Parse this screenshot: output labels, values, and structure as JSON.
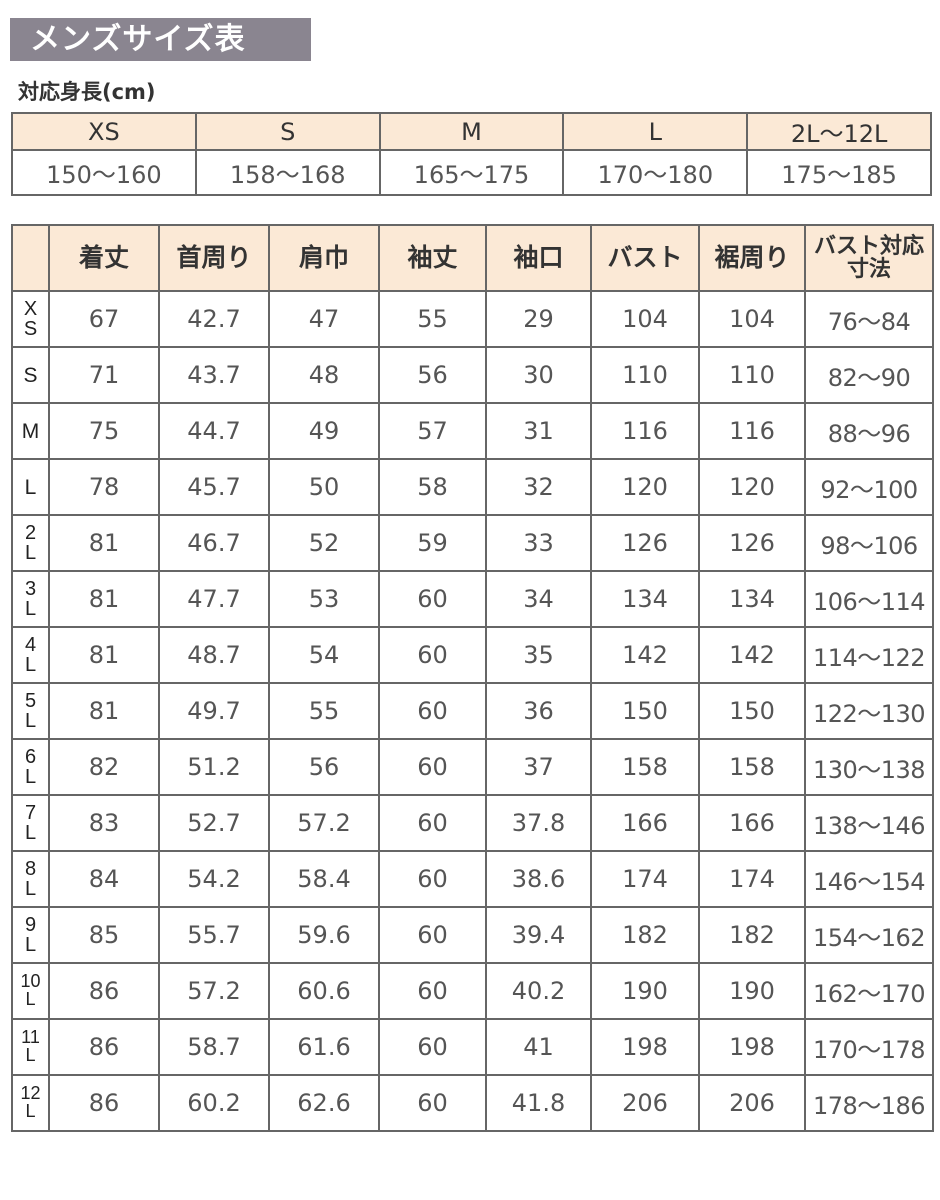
{
  "title": "メンズサイズ表",
  "height_label": "対応身長(cm)",
  "height_table": {
    "sizes": [
      "XS",
      "S",
      "M",
      "L",
      "2L〜12L"
    ],
    "heights": [
      "150〜160",
      "158〜168",
      "165〜175",
      "170〜180",
      "175〜185"
    ]
  },
  "size_table": {
    "headers": [
      "着丈",
      "首周り",
      "肩巾",
      "袖丈",
      "袖口",
      "バスト",
      "裾周り",
      "バスト対応寸法"
    ],
    "rows": [
      {
        "size": "XS",
        "values": [
          "67",
          "42.7",
          "47",
          "55",
          "29",
          "104",
          "104",
          "76〜84"
        ]
      },
      {
        "size": "S",
        "values": [
          "71",
          "43.7",
          "48",
          "56",
          "30",
          "110",
          "110",
          "82〜90"
        ]
      },
      {
        "size": "M",
        "values": [
          "75",
          "44.7",
          "49",
          "57",
          "31",
          "116",
          "116",
          "88〜96"
        ]
      },
      {
        "size": "L",
        "values": [
          "78",
          "45.7",
          "50",
          "58",
          "32",
          "120",
          "120",
          "92〜100"
        ]
      },
      {
        "size": "2L",
        "values": [
          "81",
          "46.7",
          "52",
          "59",
          "33",
          "126",
          "126",
          "98〜106"
        ]
      },
      {
        "size": "3L",
        "values": [
          "81",
          "47.7",
          "53",
          "60",
          "34",
          "134",
          "134",
          "106〜114"
        ]
      },
      {
        "size": "4L",
        "values": [
          "81",
          "48.7",
          "54",
          "60",
          "35",
          "142",
          "142",
          "114〜122"
        ]
      },
      {
        "size": "5L",
        "values": [
          "81",
          "49.7",
          "55",
          "60",
          "36",
          "150",
          "150",
          "122〜130"
        ]
      },
      {
        "size": "6L",
        "values": [
          "82",
          "51.2",
          "56",
          "60",
          "37",
          "158",
          "158",
          "130〜138"
        ]
      },
      {
        "size": "7L",
        "values": [
          "83",
          "52.7",
          "57.2",
          "60",
          "37.8",
          "166",
          "166",
          "138〜146"
        ]
      },
      {
        "size": "8L",
        "values": [
          "84",
          "54.2",
          "58.4",
          "60",
          "38.6",
          "174",
          "174",
          "146〜154"
        ]
      },
      {
        "size": "9L",
        "values": [
          "85",
          "55.7",
          "59.6",
          "60",
          "39.4",
          "182",
          "182",
          "154〜162"
        ]
      },
      {
        "size": "10L",
        "values": [
          "86",
          "57.2",
          "60.6",
          "60",
          "40.2",
          "190",
          "190",
          "162〜170"
        ]
      },
      {
        "size": "11L",
        "values": [
          "86",
          "58.7",
          "61.6",
          "60",
          "41",
          "198",
          "198",
          "170〜178"
        ]
      },
      {
        "size": "12L",
        "values": [
          "86",
          "60.2",
          "62.6",
          "60",
          "41.8",
          "206",
          "206",
          "178〜186"
        ]
      }
    ]
  },
  "colors": {
    "title_bg": "#8a8590",
    "header_bg": "#fbe9d6",
    "border": "#666666"
  }
}
